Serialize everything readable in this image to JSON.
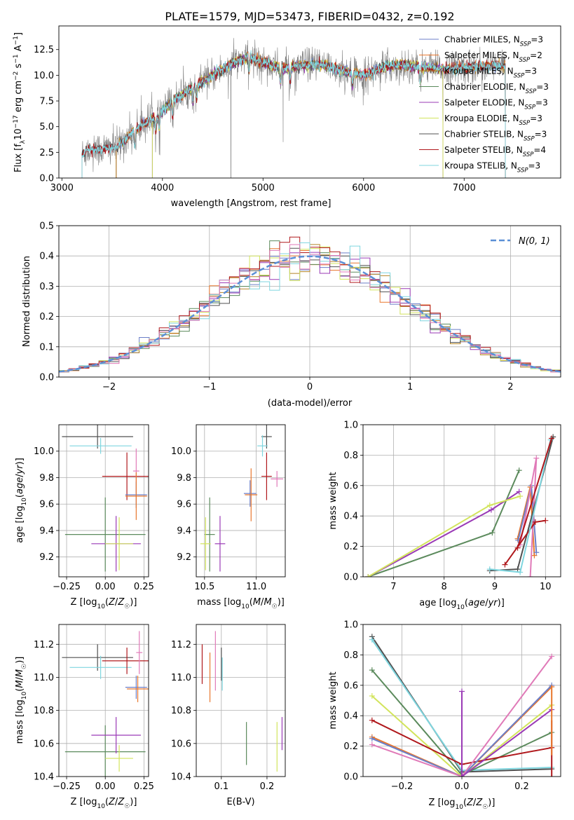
{
  "title": "PLATE=1579, MJD=53473, FIBERID=0432, z=0.192",
  "colors": {
    "ChabrierMILES": "#6b7fc8",
    "SalpeterMILES": "#e8772d",
    "KroupaMILES": "#b28428",
    "ChabrierELODIE": "#5b8a5c",
    "SalpeterELODIE": "#9a3ab6",
    "KroupaELODIE": "#d2e45c",
    "ChabrierSTELIB": "#505050",
    "SalpeterSTELIB": "#b0181c",
    "KroupaSTELIB": "#7fd6df",
    "pink": "#e07ab8",
    "data": "#808080",
    "normal": "#5b8fd6"
  },
  "chart_data": [
    {
      "id": "spectrum",
      "type": "line",
      "xlabel": "wavelength [Angstrom, rest frame]",
      "ylabel": "Flux [f_λ 10^-17 erg cm^-2 s^-1 A^-1]",
      "xlim": [
        2970,
        7960
      ],
      "ylim": [
        0,
        14.8
      ],
      "xticks": [
        3000,
        4000,
        5000,
        6000,
        7000
      ],
      "yticks": [
        0.0,
        2.5,
        5.0,
        7.5,
        10.0,
        12.5
      ],
      "legend": "upper right",
      "legend_entries": [
        {
          "text": "Chabrier MILES, N",
          "sub": "SSP",
          "suffix": "=3",
          "color": "#6b7fc8"
        },
        {
          "text": "Salpeter MILES, N",
          "sub": "SSP",
          "suffix": "=2",
          "color": "#e8772d"
        },
        {
          "text": "Kroupa MILES, N",
          "sub": "SSP",
          "suffix": "=3",
          "color": "#b28428"
        },
        {
          "text": "Chabrier ELODIE, N",
          "sub": "SSP",
          "suffix": "=3",
          "color": "#5b8a5c"
        },
        {
          "text": "Salpeter ELODIE, N",
          "sub": "SSP",
          "suffix": "=3",
          "color": "#9a3ab6"
        },
        {
          "text": "Kroupa ELODIE, N",
          "sub": "SSP",
          "suffix": "=3",
          "color": "#d2e45c"
        },
        {
          "text": "Chabrier STELIB, N",
          "sub": "SSP",
          "suffix": "=3",
          "color": "#505050"
        },
        {
          "text": "Salpeter STELIB, N",
          "sub": "SSP",
          "suffix": "=4",
          "color": "#b0181c"
        },
        {
          "text": "Kroupa STELIB, N",
          "sub": "SSP",
          "suffix": "=3",
          "color": "#7fd6df"
        }
      ],
      "continuum": [
        [
          3200,
          2.3
        ],
        [
          3250,
          2.7
        ],
        [
          3400,
          2.8
        ],
        [
          3550,
          3.0
        ],
        [
          3650,
          4.0
        ],
        [
          3800,
          5.2
        ],
        [
          3950,
          6.0
        ],
        [
          4100,
          7.5
        ],
        [
          4300,
          8.8
        ],
        [
          4500,
          10.0
        ],
        [
          4700,
          11.2
        ],
        [
          4850,
          11.8
        ],
        [
          5000,
          11.3
        ],
        [
          5200,
          10.6
        ],
        [
          5400,
          11.0
        ],
        [
          5600,
          11.0
        ],
        [
          5800,
          10.4
        ],
        [
          6000,
          10.0
        ],
        [
          6200,
          10.8
        ],
        [
          6400,
          11.0
        ],
        [
          6600,
          10.8
        ],
        [
          6800,
          10.6
        ],
        [
          7000,
          10.7
        ],
        [
          7200,
          10.9
        ],
        [
          7400,
          10.9
        ]
      ],
      "model_ranges": [
        {
          "name": "Chabrier MILES",
          "x": [
            3540,
            7410
          ]
        },
        {
          "name": "Salpeter MILES",
          "x": [
            3540,
            7410
          ]
        },
        {
          "name": "Kroupa MILES",
          "x": [
            3540,
            7410
          ]
        },
        {
          "name": "Chabrier ELODIE",
          "x": [
            3900,
            6790
          ]
        },
        {
          "name": "Salpeter ELODIE",
          "x": [
            3900,
            6790
          ]
        },
        {
          "name": "Kroupa ELODIE",
          "x": [
            3900,
            6790
          ]
        },
        {
          "name": "Chabrier STELIB",
          "x": [
            3200,
            7410
          ]
        },
        {
          "name": "Salpeter STELIB",
          "x": [
            3200,
            7410
          ]
        },
        {
          "name": "Kroupa STELIB",
          "x": [
            3200,
            7410
          ]
        }
      ]
    },
    {
      "id": "residuals",
      "type": "bar",
      "xlabel": "(data-model)/error",
      "ylabel": "Normed distribution",
      "xlim": [
        -2.5,
        2.5
      ],
      "ylim": [
        0,
        0.5
      ],
      "xticks": [
        -2,
        -1,
        0,
        1,
        2
      ],
      "yticks": [
        0.0,
        0.1,
        0.2,
        0.3,
        0.4,
        0.5
      ],
      "grid": true,
      "legend": "upper right",
      "legend_label": "N(0, 1)",
      "bin_width": 0.1,
      "bin_start": -2.5
    },
    {
      "id": "age-vs-Z",
      "type": "scatter",
      "xlabel": "Z [log10(Z/Z☉)]",
      "ylabel": "age [log10(age/yr)]",
      "xlim": [
        -0.3,
        0.28
      ],
      "ylim": [
        9.05,
        10.2
      ],
      "xticks": [
        -0.25,
        0.0,
        0.25
      ],
      "xticklabels": [
        "−0.25",
        "0.00",
        "0.25"
      ],
      "yticks": [
        9.2,
        9.4,
        9.6,
        9.8,
        10.0
      ],
      "grid": true,
      "points": [
        {
          "x": -0.05,
          "y": 10.11,
          "xerr": 0.23,
          "yerr": 0.09,
          "c": "ChabrierSTELIB"
        },
        {
          "x": -0.03,
          "y": 10.04,
          "xerr": 0.2,
          "yerr": 0.06,
          "c": "KroupaSTELIB"
        },
        {
          "x": 0.14,
          "y": 9.81,
          "xerr": 0.16,
          "yerr": 0.18,
          "c": "SalpeterSTELIB"
        },
        {
          "x": 0.2,
          "y": 9.85,
          "xerr": 0.02,
          "yerr": 0.17,
          "c": "pink"
        },
        {
          "x": 0.2,
          "y": 9.67,
          "xerr": 0.07,
          "yerr": 0.1,
          "c": "ChabrierMILES"
        },
        {
          "x": 0.2,
          "y": 9.66,
          "xerr": 0.07,
          "yerr": 0.18,
          "c": "SalpeterMILES"
        },
        {
          "x": 0.0,
          "y": 9.37,
          "xerr": 0.26,
          "yerr": 0.28,
          "c": "ChabrierELODIE"
        },
        {
          "x": 0.07,
          "y": 9.3,
          "xerr": 0.16,
          "yerr": 0.21,
          "c": "SalpeterELODIE"
        },
        {
          "x": 0.09,
          "y": 9.3,
          "xerr": 0.09,
          "yerr": 0.2,
          "c": "KroupaELODIE"
        }
      ]
    },
    {
      "id": "age-vs-mass",
      "type": "scatter",
      "xlabel": "mass [log10(M/M☉)]",
      "ylabel": "",
      "xlim": [
        10.42,
        11.28
      ],
      "ylim": [
        9.05,
        10.2
      ],
      "xticks": [
        10.5,
        11.0
      ],
      "xticklabels": [
        "10.5",
        "11.0"
      ],
      "yticks": [
        9.2,
        9.4,
        9.6,
        9.8,
        10.0
      ],
      "grid": true,
      "points": [
        {
          "x": 11.1,
          "y": 10.11,
          "xerr": 0.05,
          "yerr": 0.09,
          "c": "ChabrierSTELIB"
        },
        {
          "x": 11.06,
          "y": 10.04,
          "xerr": 0.05,
          "yerr": 0.08,
          "c": "KroupaSTELIB"
        },
        {
          "x": 11.1,
          "y": 9.81,
          "xerr": 0.05,
          "yerr": 0.18,
          "c": "SalpeterSTELIB"
        },
        {
          "x": 11.2,
          "y": 9.79,
          "xerr": 0.06,
          "yerr": 0.06,
          "c": "pink"
        },
        {
          "x": 10.94,
          "y": 9.68,
          "xerr": 0.06,
          "yerr": 0.1,
          "c": "ChabrierMILES"
        },
        {
          "x": 10.95,
          "y": 9.67,
          "xerr": 0.06,
          "yerr": 0.2,
          "c": "SalpeterMILES"
        },
        {
          "x": 10.55,
          "y": 9.37,
          "xerr": 0.05,
          "yerr": 0.28,
          "c": "ChabrierELODIE"
        },
        {
          "x": 10.65,
          "y": 9.3,
          "xerr": 0.05,
          "yerr": 0.21,
          "c": "SalpeterELODIE"
        },
        {
          "x": 10.51,
          "y": 9.3,
          "xerr": 0.05,
          "yerr": 0.2,
          "c": "KroupaELODIE"
        }
      ]
    },
    {
      "id": "mass-weight-vs-age",
      "type": "line",
      "xlabel": "age [log10(age/yr)]",
      "ylabel": "mass weight",
      "xlim": [
        6.4,
        10.3
      ],
      "ylim": [
        0,
        1.0
      ],
      "xticks": [
        7,
        8,
        9,
        10
      ],
      "yticks": [
        0.0,
        0.2,
        0.4,
        0.6,
        0.8,
        1.0
      ],
      "grid": true,
      "series": [
        {
          "c": "ChabrierELODIE",
          "x": [
            6.5,
            8.95,
            9.48
          ],
          "y": [
            0.0,
            0.29,
            0.7
          ]
        },
        {
          "c": "SalpeterELODIE",
          "x": [
            6.5,
            8.93,
            9.48
          ],
          "y": [
            0.0,
            0.44,
            0.56
          ]
        },
        {
          "c": "KroupaELODIE",
          "x": [
            6.5,
            8.9,
            9.5
          ],
          "y": [
            0.0,
            0.47,
            0.53
          ]
        },
        {
          "c": "SalpeterMILES",
          "x": [
            9.45,
            9.7,
            9.78
          ],
          "y": [
            0.25,
            0.59,
            0.14
          ]
        },
        {
          "c": "ChabrierMILES",
          "x": [
            9.46,
            9.72,
            9.82
          ],
          "y": [
            0.24,
            0.6,
            0.16
          ]
        },
        {
          "c": "pink",
          "x": [
            9.5,
            9.82,
            9.7
          ],
          "y": [
            0.21,
            0.78,
            0.0
          ]
        },
        {
          "c": "ChabrierSTELIB",
          "x": [
            8.9,
            9.45,
            10.15
          ],
          "y": [
            0.04,
            0.05,
            0.92
          ]
        },
        {
          "c": "SalpeterSTELIB",
          "x": [
            9.2,
            9.8,
            10.0
          ],
          "y": [
            0.08,
            0.36,
            0.37
          ]
        },
        {
          "c": "KroupaSTELIB",
          "x": [
            8.9,
            9.5,
            10.1
          ],
          "y": [
            0.05,
            0.03,
            0.9
          ]
        },
        {
          "c": "SalpeterSTELIB",
          "x": [
            9.45,
            10.12
          ],
          "y": [
            0.19,
            0.91
          ]
        }
      ]
    },
    {
      "id": "mass-vs-Z",
      "type": "scatter",
      "xlabel": "Z [log10(Z/Z☉)]",
      "ylabel": "mass [log10(M/M☉)]",
      "xlim": [
        -0.3,
        0.28
      ],
      "ylim": [
        10.4,
        11.32
      ],
      "xticks": [
        -0.25,
        0.0,
        0.25
      ],
      "xticklabels": [
        "−0.25",
        "0.00",
        "0.25"
      ],
      "yticks": [
        10.4,
        10.6,
        10.8,
        11.0,
        11.2
      ],
      "grid": true,
      "points": [
        {
          "x": -0.05,
          "y": 11.12,
          "xerr": 0.23,
          "yerr": 0.08,
          "c": "ChabrierSTELIB"
        },
        {
          "x": -0.03,
          "y": 11.06,
          "xerr": 0.2,
          "yerr": 0.07,
          "c": "KroupaSTELIB"
        },
        {
          "x": 0.14,
          "y": 11.1,
          "xerr": 0.16,
          "yerr": 0.08,
          "c": "SalpeterSTELIB"
        },
        {
          "x": 0.22,
          "y": 11.15,
          "xerr": 0.02,
          "yerr": 0.13,
          "c": "pink"
        },
        {
          "x": 0.2,
          "y": 10.94,
          "xerr": 0.07,
          "yerr": 0.07,
          "c": "ChabrierMILES"
        },
        {
          "x": 0.21,
          "y": 10.93,
          "xerr": 0.07,
          "yerr": 0.08,
          "c": "SalpeterMILES"
        },
        {
          "x": 0.0,
          "y": 10.55,
          "xerr": 0.26,
          "yerr": 0.16,
          "c": "ChabrierELODIE"
        },
        {
          "x": 0.07,
          "y": 10.65,
          "xerr": 0.16,
          "yerr": 0.11,
          "c": "SalpeterELODIE"
        },
        {
          "x": 0.09,
          "y": 10.51,
          "xerr": 0.09,
          "yerr": 0.08,
          "c": "KroupaELODIE"
        }
      ]
    },
    {
      "id": "mass-vs-EBV",
      "type": "scatter",
      "xlabel": "E(B-V)",
      "ylabel": "",
      "xlim": [
        0.045,
        0.24
      ],
      "ylim": [
        10.4,
        11.32
      ],
      "xticks": [
        0.1,
        0.2
      ],
      "xticklabels": [
        "0.1",
        "0.2"
      ],
      "yticks": [
        10.4,
        10.6,
        10.8,
        11.0,
        11.2
      ],
      "grid": true,
      "points": [
        {
          "x": 0.058,
          "y": 11.08,
          "xerr": 0.0,
          "yerr": 0.12,
          "c": "SalpeterSTELIB"
        },
        {
          "x": 0.075,
          "y": 11.0,
          "xerr": 0.0,
          "yerr": 0.15,
          "c": "SalpeterMILES"
        },
        {
          "x": 0.087,
          "y": 11.1,
          "xerr": 0.0,
          "yerr": 0.18,
          "c": "pink"
        },
        {
          "x": 0.1,
          "y": 11.08,
          "xerr": 0.0,
          "yerr": 0.1,
          "c": "ChabrierSTELIB"
        },
        {
          "x": 0.102,
          "y": 11.02,
          "xerr": 0.0,
          "yerr": 0.1,
          "c": "KroupaSTELIB"
        },
        {
          "x": 0.155,
          "y": 10.6,
          "xerr": 0.0,
          "yerr": 0.13,
          "c": "ChabrierELODIE"
        },
        {
          "x": 0.222,
          "y": 10.58,
          "xerr": 0.0,
          "yerr": 0.15,
          "c": "KroupaELODIE"
        },
        {
          "x": 0.233,
          "y": 10.66,
          "xerr": 0.0,
          "yerr": 0.1,
          "c": "SalpeterELODIE"
        }
      ]
    },
    {
      "id": "mass-weight-vs-Z",
      "type": "line",
      "xlabel": "Z [log10(Z/Z☉)]",
      "ylabel": "mass weight",
      "xlim": [
        -0.33,
        0.33
      ],
      "ylim": [
        0,
        1.0
      ],
      "xticks": [
        -0.2,
        0.0,
        0.2
      ],
      "xticklabels": [
        "−0.2",
        "0.0",
        "0.2"
      ],
      "yticks": [
        0.0,
        0.2,
        0.4,
        0.6,
        0.8,
        1.0
      ],
      "grid": true,
      "series": [
        {
          "c": "ChabrierSTELIB",
          "x": [
            -0.3,
            0.0,
            0.3
          ],
          "y": [
            0.92,
            0.03,
            0.05
          ]
        },
        {
          "c": "KroupaSTELIB",
          "x": [
            -0.3,
            0.0,
            0.3
          ],
          "y": [
            0.9,
            0.04,
            0.06
          ]
        },
        {
          "c": "ChabrierELODIE",
          "x": [
            -0.3,
            0.0,
            0.3
          ],
          "y": [
            0.7,
            0.01,
            0.29
          ]
        },
        {
          "c": "KroupaELODIE",
          "x": [
            -0.3,
            0.0,
            0.3
          ],
          "y": [
            0.53,
            0.0,
            0.47
          ]
        },
        {
          "c": "SalpeterSTELIB",
          "x": [
            -0.3,
            0.0,
            0.3
          ],
          "y": [
            0.37,
            0.08,
            0.19
          ]
        },
        {
          "c": "SalpeterMILES",
          "x": [
            -0.3,
            0.0,
            0.3
          ],
          "y": [
            0.26,
            0.0,
            0.59
          ]
        },
        {
          "c": "ChabrierMILES",
          "x": [
            -0.3,
            0.0,
            0.3
          ],
          "y": [
            0.25,
            0.0,
            0.6
          ]
        },
        {
          "c": "pink",
          "x": [
            -0.3,
            0.0,
            0.3
          ],
          "y": [
            0.21,
            0.0,
            0.79
          ]
        },
        {
          "c": "SalpeterELODIE",
          "x": [
            0.0,
            0.0,
            0.3
          ],
          "y": [
            0.56,
            0.0,
            0.44
          ]
        }
      ],
      "vlines": [
        {
          "c": "SalpeterELODIE",
          "x": 0.0,
          "y": [
            0.0,
            0.56
          ]
        },
        {
          "c": "SalpeterSTELIB",
          "x": 0.3,
          "y": [
            0.0,
            0.37
          ]
        },
        {
          "c": "SalpeterMILES",
          "x": 0.3,
          "y": [
            0.14,
            0.6
          ]
        }
      ]
    }
  ]
}
